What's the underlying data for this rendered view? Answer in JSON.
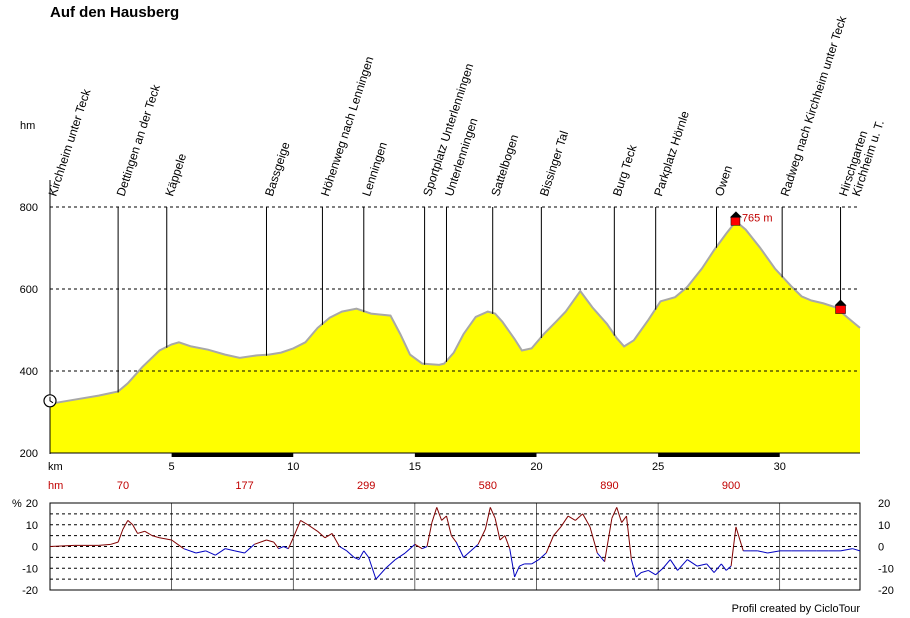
{
  "title": "Auf den Hausberg",
  "credit": "Profil created by CicloTour",
  "colors": {
    "fill": "#ffff00",
    "outline": "#a8a8a8",
    "red": "#c00000",
    "up": "#800000",
    "down": "#0000c0",
    "max_marker": "#ff0000"
  },
  "chart_data": [
    {
      "type": "area",
      "title": "Auf den Hausberg",
      "ylabel": "hm",
      "xlabel": "km",
      "ylim": [
        200,
        800
      ],
      "yticks": [
        200,
        400,
        600,
        800
      ],
      "xlim": [
        0,
        33.3
      ],
      "xticks": [
        5,
        10,
        15,
        20,
        25,
        30
      ],
      "grid": true,
      "profile": [
        [
          0,
          320
        ],
        [
          1,
          330
        ],
        [
          2,
          340
        ],
        [
          2.8,
          350
        ],
        [
          3.2,
          370
        ],
        [
          3.8,
          410
        ],
        [
          4.5,
          450
        ],
        [
          5,
          465
        ],
        [
          5.3,
          470
        ],
        [
          5.8,
          460
        ],
        [
          6.5,
          452
        ],
        [
          7.2,
          440
        ],
        [
          7.8,
          432
        ],
        [
          8.5,
          438
        ],
        [
          9,
          440
        ],
        [
          9.5,
          445
        ],
        [
          10,
          455
        ],
        [
          10.5,
          470
        ],
        [
          11,
          505
        ],
        [
          11.5,
          530
        ],
        [
          12,
          545
        ],
        [
          12.6,
          552
        ],
        [
          13.2,
          540
        ],
        [
          14,
          535
        ],
        [
          14.4,
          490
        ],
        [
          14.8,
          440
        ],
        [
          15.3,
          418
        ],
        [
          16,
          415
        ],
        [
          16.2,
          418
        ],
        [
          16.6,
          445
        ],
        [
          17,
          490
        ],
        [
          17.5,
          532
        ],
        [
          18,
          545
        ],
        [
          18.3,
          540
        ],
        [
          18.6,
          520
        ],
        [
          19.1,
          478
        ],
        [
          19.4,
          450
        ],
        [
          19.8,
          455
        ],
        [
          20.3,
          490
        ],
        [
          20.8,
          520
        ],
        [
          21.2,
          545
        ],
        [
          21.8,
          595
        ],
        [
          22.3,
          555
        ],
        [
          22.9,
          515
        ],
        [
          23.3,
          480
        ],
        [
          23.6,
          460
        ],
        [
          24,
          475
        ],
        [
          24.6,
          525
        ],
        [
          25.1,
          570
        ],
        [
          25.7,
          580
        ],
        [
          26.2,
          605
        ],
        [
          26.8,
          650
        ],
        [
          27.3,
          695
        ],
        [
          27.8,
          735
        ],
        [
          28.2,
          765
        ],
        [
          28.6,
          745
        ],
        [
          29.2,
          700
        ],
        [
          29.8,
          650
        ],
        [
          30.5,
          605
        ],
        [
          30.9,
          582
        ],
        [
          31.3,
          572
        ],
        [
          31.8,
          565
        ],
        [
          32.3,
          555
        ],
        [
          32.8,
          530
        ],
        [
          33.3,
          505
        ]
      ],
      "max_label": "765 m",
      "waypoints": [
        {
          "label": "Kirchheim unter Teck",
          "km": 0
        },
        {
          "label": "Dettingen an der Teck",
          "km": 2.8
        },
        {
          "label": "Käppele",
          "km": 4.8
        },
        {
          "label": "Bassgeige",
          "km": 8.9
        },
        {
          "label": "Höhenweg nach Lenningen",
          "km": 11.2
        },
        {
          "label": "Lenningen",
          "km": 12.9
        },
        {
          "label": "Sportplatz Unterlenningen",
          "km": 15.4
        },
        {
          "label": "Unterlenningen",
          "km": 16.3
        },
        {
          "label": "Sattelbogen",
          "km": 18.2
        },
        {
          "label": "Bissinger Tal",
          "km": 20.2
        },
        {
          "label": "Burg Teck",
          "km": 23.2
        },
        {
          "label": "Parkplatz Hörnle",
          "km": 24.9
        },
        {
          "label": "Owen",
          "km": 27.4
        },
        {
          "label": "Radweg nach Kirchheim unter Teck",
          "km": 30.1
        },
        {
          "label": "Hirschgarten",
          "km": 32.5
        },
        {
          "label": "Kirchheim u. T.",
          "km": 32.5
        }
      ],
      "hm_row": {
        "label": "hm",
        "values": [
          "70",
          "177",
          "299",
          "580",
          "890",
          "900"
        ],
        "km": [
          3,
          8,
          13,
          18,
          23,
          28
        ]
      }
    },
    {
      "type": "line",
      "ylabel": "%",
      "ylim": [
        -20,
        20
      ],
      "yticks": [
        -20,
        -10,
        0,
        10,
        20
      ],
      "grid": true,
      "x": [
        0,
        1,
        2,
        2.5,
        2.8,
        3,
        3.2,
        3.4,
        3.6,
        3.9,
        4.2,
        4.5,
        5,
        5.5,
        6,
        6.4,
        6.8,
        7.2,
        7.6,
        8,
        8.4,
        8.9,
        9.2,
        9.4,
        9.6,
        9.8,
        10,
        10.3,
        10.6,
        11,
        11.3,
        11.6,
        11.9,
        12.2,
        12.5,
        12.7,
        12.9,
        13.1,
        13.4,
        13.8,
        14.2,
        14.6,
        15,
        15.3,
        15.5,
        15.7,
        15.9,
        16.1,
        16.3,
        16.5,
        16.7,
        17,
        17.3,
        17.6,
        17.9,
        18.1,
        18.3,
        18.5,
        18.7,
        18.9,
        19.1,
        19.3,
        19.5,
        19.8,
        20.1,
        20.4,
        20.7,
        21,
        21.3,
        21.6,
        21.9,
        22.2,
        22.5,
        22.8,
        23.1,
        23.3,
        23.5,
        23.7,
        23.9,
        24.1,
        24.3,
        24.6,
        24.9,
        25.2,
        25.5,
        25.8,
        26.2,
        26.6,
        27,
        27.3,
        27.6,
        27.8,
        28,
        28.2,
        28.5,
        28.8,
        29.1,
        29.5,
        30,
        30.5,
        31,
        31.5,
        32,
        32.5,
        33,
        33.3
      ],
      "y": [
        0,
        0.5,
        0.5,
        1,
        2,
        8,
        12,
        10,
        6,
        7,
        5,
        4,
        3,
        -1,
        -3,
        -2,
        -4,
        -1,
        -2,
        -3,
        1,
        3,
        2,
        -1,
        0,
        -1,
        4,
        12,
        10,
        7,
        4,
        6,
        0,
        -2,
        -5,
        -6,
        -2,
        -5,
        -15,
        -10,
        -6,
        -3,
        1,
        -1,
        0,
        11,
        18,
        12,
        14,
        5,
        2,
        -5,
        -2,
        1,
        8,
        18,
        13,
        3,
        5,
        -1,
        -14,
        -9,
        -8,
        -8,
        -6,
        -3,
        5,
        9,
        14,
        12,
        15,
        9,
        -3,
        -7,
        13,
        18,
        11,
        14,
        -6,
        -14,
        -12,
        -11,
        -13,
        -10,
        -6,
        -11,
        -6,
        -9,
        -8,
        -12,
        -8,
        -11,
        -9,
        9,
        -2,
        -2,
        -2,
        -3,
        -2,
        -2,
        -2,
        -2,
        -2,
        -2,
        -1,
        -2
      ]
    }
  ]
}
